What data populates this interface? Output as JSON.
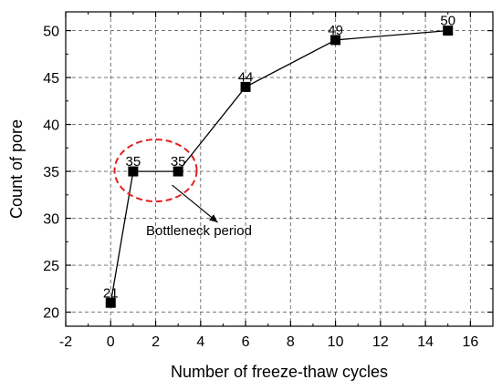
{
  "chart_data": {
    "type": "line",
    "title": "",
    "xlabel": "Number of freeze-thaw cycles",
    "ylabel": "Count of pore",
    "xlim": [
      -2,
      17
    ],
    "ylim": [
      18.5,
      52
    ],
    "xticks": [
      -2,
      0,
      2,
      4,
      6,
      8,
      10,
      12,
      14,
      16
    ],
    "yticks": [
      20,
      25,
      30,
      35,
      40,
      45,
      50
    ],
    "grid": true,
    "grid_style": "dashed",
    "marker": "square",
    "series": [
      {
        "x": [
          0,
          1,
          3,
          6,
          10,
          15
        ],
        "y": [
          21,
          35,
          35,
          44,
          49,
          50
        ],
        "labels": [
          "21",
          "35",
          "35",
          "44",
          "49",
          "50"
        ],
        "color": "#000000"
      }
    ],
    "annotation": {
      "text": "Bottleneck period",
      "highlight_color": "#e02020",
      "highlight_style": "dashed-ellipse",
      "highlight_center": [
        2,
        35
      ]
    }
  }
}
